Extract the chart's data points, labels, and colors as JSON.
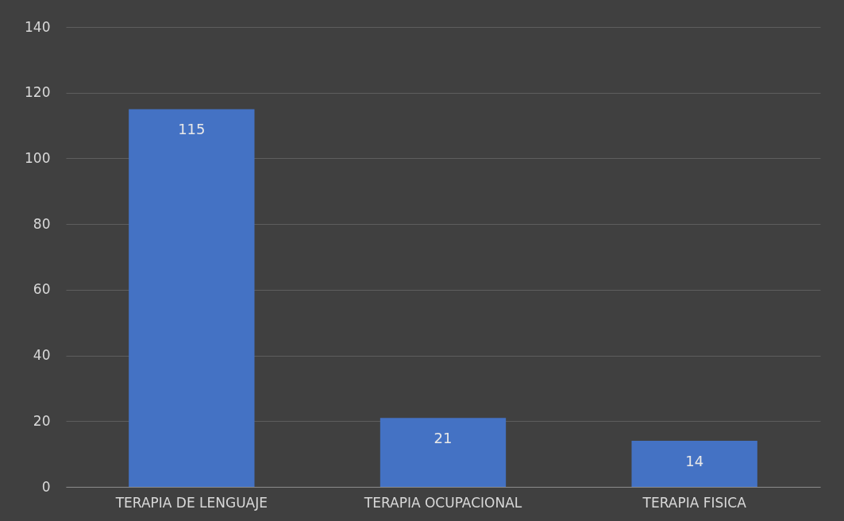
{
  "chart_data": {
    "type": "bar",
    "categories": [
      "TERAPIA DE LENGUAJE",
      "TERAPIA OCUPACIONAL",
      "TERAPIA FISICA"
    ],
    "values": [
      115,
      21,
      14
    ],
    "color": "#4472c4",
    "ylim": [
      0,
      140
    ],
    "yticks": [
      0,
      20,
      40,
      60,
      80,
      100,
      120,
      140
    ],
    "grid": "y",
    "data_labels": true
  }
}
